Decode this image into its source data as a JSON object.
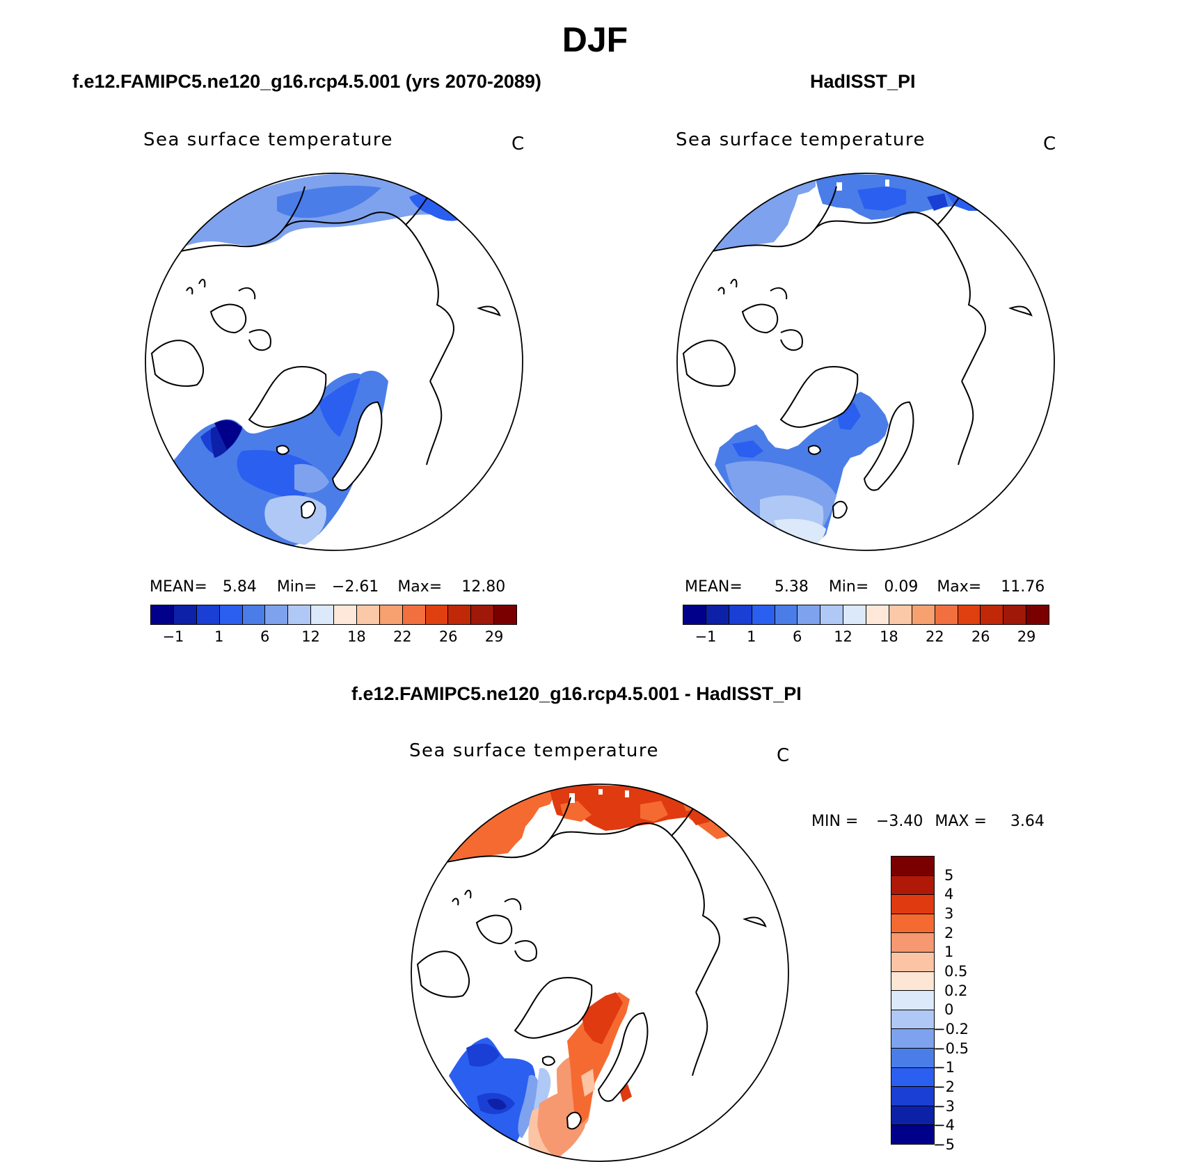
{
  "page_title": "DJF",
  "panels": [
    {
      "case_title": "f.e12.FAMIPC5.ne120_g16.rcp4.5.001 (yrs 2070-2089)",
      "var_title": "Sea surface temperature",
      "units": "C",
      "stats": {
        "mean_label": "MEAN=",
        "mean": "5.84",
        "min_label": "Min=",
        "min": "−2.61",
        "max_label": "Max=",
        "max": "12.80"
      }
    },
    {
      "case_title": "HadISST_PI",
      "var_title": "Sea surface temperature",
      "units": "C",
      "stats": {
        "mean_label": "MEAN=",
        "mean": "5.38",
        "min_label": "Min=",
        "min": "0.09",
        "max_label": "Max=",
        "max": "11.76"
      }
    },
    {
      "case_title": "f.e12.FAMIPC5.ne120_g16.rcp4.5.001 - HadISST_PI",
      "var_title": "Sea surface temperature",
      "units": "C",
      "stats": {
        "min_label": "MIN =",
        "min": "−3.40",
        "max_label": "MAX =",
        "max": "3.64"
      }
    }
  ],
  "abs_colorbar": {
    "colors": [
      "#00008b",
      "#0d21a8",
      "#1a3fd4",
      "#2a5ff0",
      "#4a7de8",
      "#7ea2ee",
      "#b0c8f5",
      "#dbe9fb",
      "#fde8d9",
      "#fbc8a8",
      "#f7a070",
      "#f27040",
      "#e04010",
      "#c02808",
      "#a01808",
      "#7a0000"
    ],
    "tick_labels": [
      "−1",
      "1",
      "6",
      "12",
      "18",
      "22",
      "26",
      "29"
    ]
  },
  "diff_colorbar": {
    "colors": [
      "#7a0000",
      "#b01808",
      "#e03a10",
      "#f56a30",
      "#f69870",
      "#fbc4a4",
      "#fde6d4",
      "#dbe9fb",
      "#b0c8f5",
      "#7ea2ee",
      "#4a7de8",
      "#2a5ff0",
      "#1a3fd4",
      "#0d21a8",
      "#00008b"
    ],
    "tick_labels": [
      "5",
      "4",
      "3",
      "2",
      "1",
      "0.5",
      "0.2",
      "0",
      "−0.2",
      "−0.5",
      "−1",
      "−2",
      "−3",
      "−4",
      "−5"
    ]
  }
}
